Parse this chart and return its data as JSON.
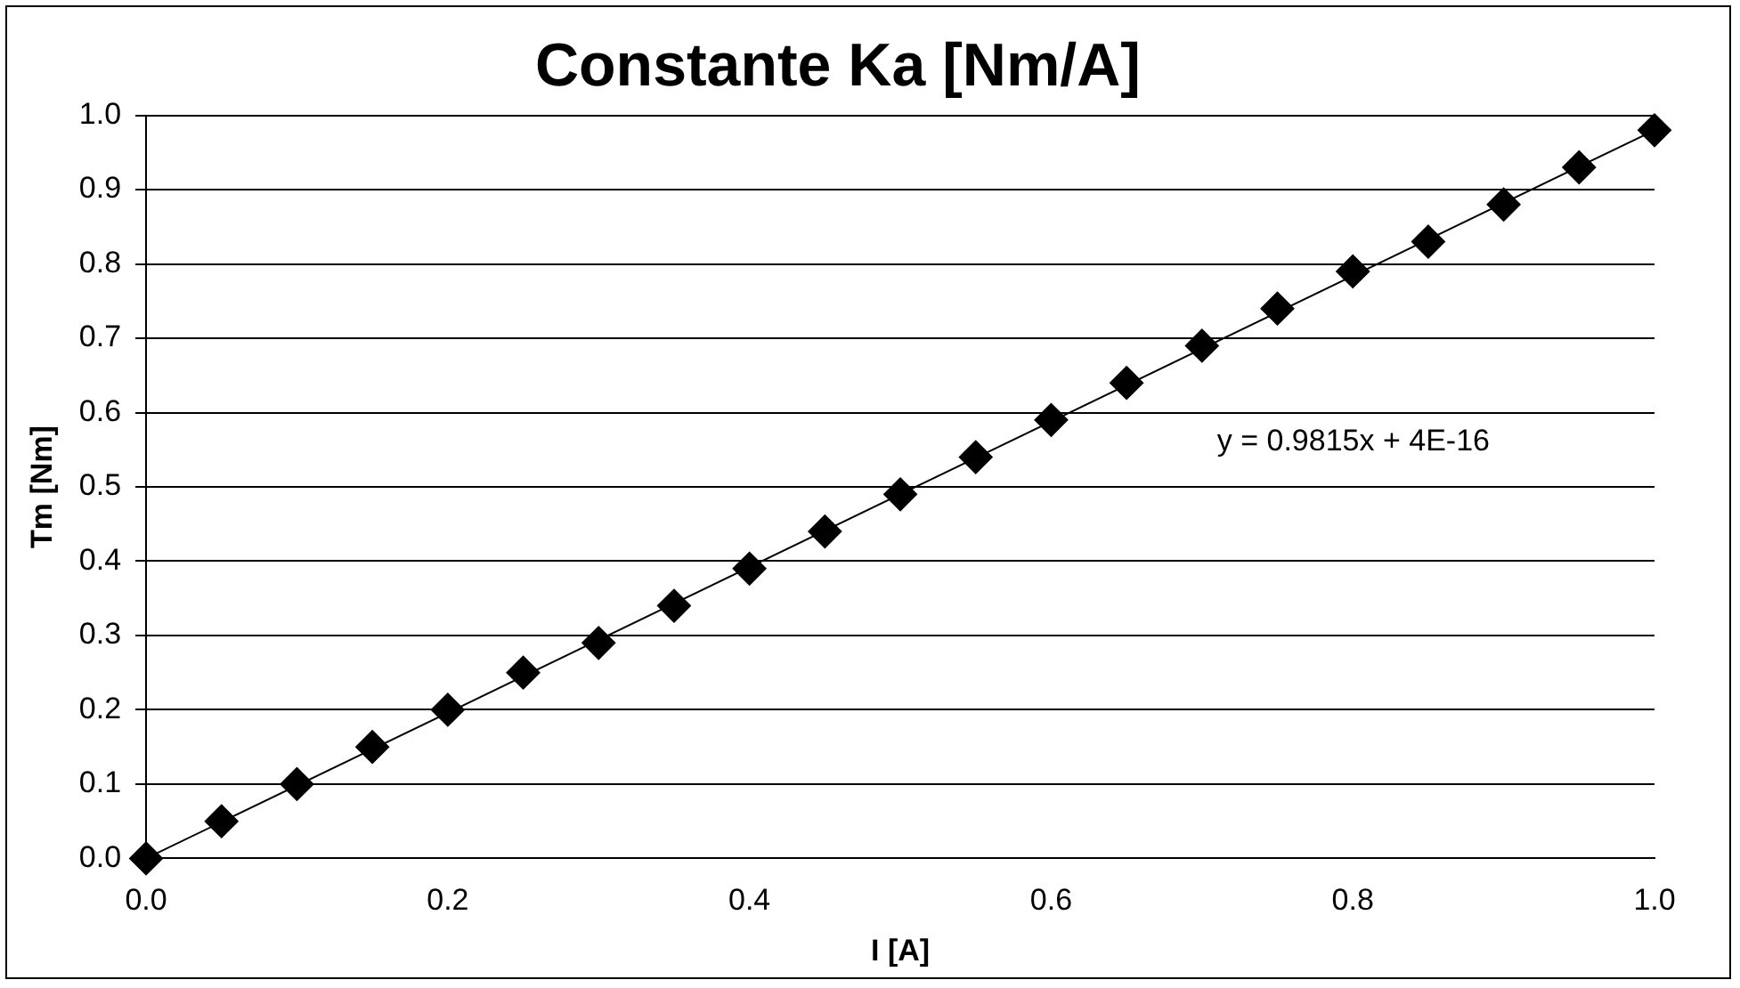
{
  "chart_data": {
    "type": "scatter",
    "title": "Constante Ka [Nm/A]",
    "xlabel": "I [A]",
    "ylabel": "Tm [Nm]",
    "xlim": [
      0,
      1
    ],
    "ylim": [
      0,
      1
    ],
    "xticks": [
      {
        "value": 0,
        "label": "0.0"
      },
      {
        "value": 0.2,
        "label": "0.2"
      },
      {
        "value": 0.4,
        "label": "0.4"
      },
      {
        "value": 0.6,
        "label": "0.6"
      },
      {
        "value": 0.8,
        "label": "0.8"
      },
      {
        "value": 1,
        "label": "1.0"
      }
    ],
    "yticks": [
      {
        "value": 0,
        "label": "0.0"
      },
      {
        "value": 0.1,
        "label": "0.1"
      },
      {
        "value": 0.2,
        "label": "0.2"
      },
      {
        "value": 0.3,
        "label": "0.3"
      },
      {
        "value": 0.4,
        "label": "0.4"
      },
      {
        "value": 0.5,
        "label": "0.5"
      },
      {
        "value": 0.6,
        "label": "0.6"
      },
      {
        "value": 0.7,
        "label": "0.7"
      },
      {
        "value": 0.8,
        "label": "0.8"
      },
      {
        "value": 0.9,
        "label": "0.9"
      },
      {
        "value": 1,
        "label": "1.0"
      }
    ],
    "grid": "y",
    "marker": "diamond",
    "series": [
      {
        "color": "#000000",
        "x": [
          0,
          0.05,
          0.1,
          0.15,
          0.2,
          0.25,
          0.3,
          0.35,
          0.4,
          0.45,
          0.5,
          0.55,
          0.6,
          0.65,
          0.7,
          0.75,
          0.8,
          0.85,
          0.9,
          0.95,
          1
        ],
        "values": [
          0,
          0.05,
          0.1,
          0.15,
          0.2,
          0.25,
          0.29,
          0.34,
          0.39,
          0.44,
          0.49,
          0.54,
          0.59,
          0.64,
          0.69,
          0.74,
          0.79,
          0.83,
          0.88,
          0.93,
          0.98
        ]
      },
      {
        "type": "line",
        "color": "#000000",
        "marker": "none",
        "x": [
          0,
          1
        ],
        "values": [
          0,
          0.98
        ]
      }
    ],
    "annotations": [
      "y = 0.9815x + 4E-16"
    ]
  }
}
